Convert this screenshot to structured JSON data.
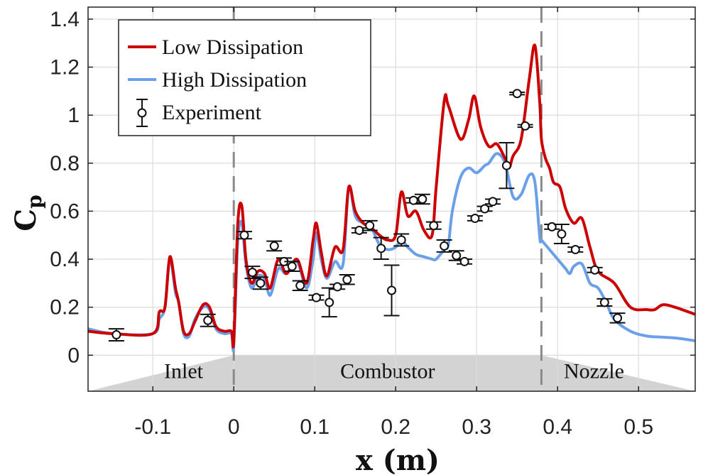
{
  "chart_data": {
    "type": "line",
    "xlabel": "x (m)",
    "ylabel": "C",
    "ylabel_sub": "p",
    "xlim": [
      -0.18,
      0.57
    ],
    "ylim": [
      -0.15,
      1.45
    ],
    "x_ticks": [
      -0.1,
      0,
      0.1,
      0.2,
      0.3,
      0.4,
      0.5
    ],
    "x_tick_labels": [
      "-0.1",
      "0",
      "0.1",
      "0.2",
      "0.3",
      "0.4",
      "0.5"
    ],
    "y_ticks": [
      0,
      0.2,
      0.4,
      0.6,
      0.8,
      1.0,
      1.2,
      1.4
    ],
    "y_tick_labels": [
      "0",
      "0.2",
      "0.4",
      "0.6",
      "0.8",
      "1",
      "1.2",
      "1.4"
    ],
    "grid": true,
    "legend_position": "top-left",
    "legend": [
      "Low Dissipation",
      "High Dissipation",
      "Experiment"
    ],
    "regions": [
      {
        "label": "Inlet",
        "x_start": -0.18,
        "x_end": 0.0
      },
      {
        "label": "Combustor",
        "x_start": 0.0,
        "x_end": 0.38
      },
      {
        "label": "Nozzle",
        "x_start": 0.38,
        "x_end": 0.57
      }
    ],
    "boundaries": [
      0.0,
      0.38
    ],
    "series": [
      {
        "name": "Low Dissipation",
        "color": "#cc0000",
        "points": [
          [
            -0.18,
            0.1
          ],
          [
            -0.15,
            0.09
          ],
          [
            -0.1,
            0.09
          ],
          [
            -0.092,
            0.18
          ],
          [
            -0.085,
            0.2
          ],
          [
            -0.079,
            0.41
          ],
          [
            -0.072,
            0.28
          ],
          [
            -0.068,
            0.22
          ],
          [
            -0.062,
            0.1
          ],
          [
            -0.055,
            0.09
          ],
          [
            -0.048,
            0.14
          ],
          [
            -0.038,
            0.21
          ],
          [
            -0.03,
            0.2
          ],
          [
            -0.022,
            0.12
          ],
          [
            -0.012,
            0.1
          ],
          [
            -0.003,
            0.1
          ],
          [
            0.0,
            0.06
          ],
          [
            0.005,
            0.55
          ],
          [
            0.01,
            0.62
          ],
          [
            0.015,
            0.4
          ],
          [
            0.022,
            0.3
          ],
          [
            0.03,
            0.35
          ],
          [
            0.038,
            0.34
          ],
          [
            0.045,
            0.28
          ],
          [
            0.055,
            0.4
          ],
          [
            0.065,
            0.34
          ],
          [
            0.078,
            0.4
          ],
          [
            0.09,
            0.3
          ],
          [
            0.098,
            0.48
          ],
          [
            0.102,
            0.55
          ],
          [
            0.108,
            0.43
          ],
          [
            0.115,
            0.33
          ],
          [
            0.125,
            0.45
          ],
          [
            0.135,
            0.44
          ],
          [
            0.142,
            0.7
          ],
          [
            0.15,
            0.6
          ],
          [
            0.16,
            0.55
          ],
          [
            0.17,
            0.53
          ],
          [
            0.18,
            0.5
          ],
          [
            0.19,
            0.48
          ],
          [
            0.2,
            0.5
          ],
          [
            0.207,
            0.68
          ],
          [
            0.215,
            0.58
          ],
          [
            0.225,
            0.6
          ],
          [
            0.235,
            0.52
          ],
          [
            0.245,
            0.5
          ],
          [
            0.25,
            0.7
          ],
          [
            0.26,
            1.06
          ],
          [
            0.265,
            1.04
          ],
          [
            0.28,
            0.9
          ],
          [
            0.29,
            0.98
          ],
          [
            0.297,
            1.08
          ],
          [
            0.305,
            0.95
          ],
          [
            0.315,
            0.87
          ],
          [
            0.325,
            0.88
          ],
          [
            0.335,
            0.82
          ],
          [
            0.34,
            0.78
          ],
          [
            0.345,
            0.83
          ],
          [
            0.355,
            0.9
          ],
          [
            0.365,
            1.15
          ],
          [
            0.372,
            1.29
          ],
          [
            0.378,
            1.05
          ],
          [
            0.38,
            0.9
          ],
          [
            0.385,
            0.82
          ],
          [
            0.39,
            0.78
          ],
          [
            0.395,
            0.72
          ],
          [
            0.403,
            0.7
          ],
          [
            0.41,
            0.61
          ],
          [
            0.42,
            0.55
          ],
          [
            0.43,
            0.57
          ],
          [
            0.44,
            0.45
          ],
          [
            0.45,
            0.35
          ],
          [
            0.47,
            0.3
          ],
          [
            0.49,
            0.2
          ],
          [
            0.51,
            0.19
          ],
          [
            0.52,
            0.19
          ],
          [
            0.53,
            0.21
          ],
          [
            0.545,
            0.2
          ],
          [
            0.57,
            0.17
          ]
        ]
      },
      {
        "name": "High Dissipation",
        "color": "#6aa0ea",
        "points": [
          [
            -0.18,
            0.11
          ],
          [
            -0.15,
            0.09
          ],
          [
            -0.1,
            0.09
          ],
          [
            -0.092,
            0.15
          ],
          [
            -0.085,
            0.2
          ],
          [
            -0.079,
            0.4
          ],
          [
            -0.072,
            0.26
          ],
          [
            -0.068,
            0.22
          ],
          [
            -0.062,
            0.09
          ],
          [
            -0.055,
            0.08
          ],
          [
            -0.048,
            0.15
          ],
          [
            -0.038,
            0.2
          ],
          [
            -0.03,
            0.19
          ],
          [
            -0.022,
            0.11
          ],
          [
            -0.012,
            0.09
          ],
          [
            -0.003,
            0.09
          ],
          [
            0.0,
            0.04
          ],
          [
            0.005,
            0.48
          ],
          [
            0.01,
            0.55
          ],
          [
            0.015,
            0.38
          ],
          [
            0.022,
            0.28
          ],
          [
            0.03,
            0.33
          ],
          [
            0.038,
            0.32
          ],
          [
            0.045,
            0.25
          ],
          [
            0.055,
            0.36
          ],
          [
            0.065,
            0.34
          ],
          [
            0.078,
            0.39
          ],
          [
            0.09,
            0.28
          ],
          [
            0.098,
            0.4
          ],
          [
            0.102,
            0.51
          ],
          [
            0.108,
            0.4
          ],
          [
            0.115,
            0.32
          ],
          [
            0.125,
            0.39
          ],
          [
            0.135,
            0.38
          ],
          [
            0.142,
            0.7
          ],
          [
            0.15,
            0.58
          ],
          [
            0.16,
            0.55
          ],
          [
            0.17,
            0.53
          ],
          [
            0.18,
            0.46
          ],
          [
            0.19,
            0.44
          ],
          [
            0.2,
            0.45
          ],
          [
            0.207,
            0.48
          ],
          [
            0.215,
            0.45
          ],
          [
            0.225,
            0.42
          ],
          [
            0.235,
            0.41
          ],
          [
            0.245,
            0.4
          ],
          [
            0.25,
            0.4
          ],
          [
            0.26,
            0.44
          ],
          [
            0.265,
            0.46
          ],
          [
            0.27,
            0.6
          ],
          [
            0.28,
            0.74
          ],
          [
            0.29,
            0.78
          ],
          [
            0.3,
            0.76
          ],
          [
            0.31,
            0.79
          ],
          [
            0.315,
            0.8
          ],
          [
            0.325,
            0.84
          ],
          [
            0.335,
            0.8
          ],
          [
            0.345,
            0.66
          ],
          [
            0.355,
            0.67
          ],
          [
            0.365,
            0.75
          ],
          [
            0.372,
            0.72
          ],
          [
            0.378,
            0.49
          ],
          [
            0.38,
            0.48
          ],
          [
            0.39,
            0.44
          ],
          [
            0.4,
            0.4
          ],
          [
            0.41,
            0.36
          ],
          [
            0.415,
            0.34
          ],
          [
            0.42,
            0.37
          ],
          [
            0.43,
            0.38
          ],
          [
            0.44,
            0.3
          ],
          [
            0.45,
            0.28
          ],
          [
            0.46,
            0.22
          ],
          [
            0.47,
            0.15
          ],
          [
            0.49,
            0.1
          ],
          [
            0.51,
            0.08
          ],
          [
            0.53,
            0.075
          ],
          [
            0.55,
            0.07
          ],
          [
            0.57,
            0.06
          ]
        ]
      }
    ],
    "experiment": {
      "name": "Experiment",
      "points": [
        {
          "x": -0.145,
          "y": 0.085,
          "err": 0.025
        },
        {
          "x": -0.032,
          "y": 0.145,
          "err": 0.025
        },
        {
          "x": 0.013,
          "y": 0.5,
          "err": 0.015
        },
        {
          "x": 0.023,
          "y": 0.345,
          "err": 0.025
        },
        {
          "x": 0.033,
          "y": 0.3,
          "err": 0.025
        },
        {
          "x": 0.05,
          "y": 0.455,
          "err": 0.02
        },
        {
          "x": 0.062,
          "y": 0.39,
          "err": 0.015
        },
        {
          "x": 0.072,
          "y": 0.37,
          "err": 0.02
        },
        {
          "x": 0.082,
          "y": 0.29,
          "err": 0.02
        },
        {
          "x": 0.102,
          "y": 0.24,
          "err": 0.01
        },
        {
          "x": 0.118,
          "y": 0.22,
          "err": 0.06
        },
        {
          "x": 0.128,
          "y": 0.285,
          "err": 0.01
        },
        {
          "x": 0.14,
          "y": 0.315,
          "err": 0.02
        },
        {
          "x": 0.155,
          "y": 0.52,
          "err": 0.01
        },
        {
          "x": 0.168,
          "y": 0.54,
          "err": 0.02
        },
        {
          "x": 0.182,
          "y": 0.445,
          "err": 0.045
        },
        {
          "x": 0.195,
          "y": 0.27,
          "err": 0.105
        },
        {
          "x": 0.207,
          "y": 0.48,
          "err": 0.025
        },
        {
          "x": 0.222,
          "y": 0.645,
          "err": 0.01
        },
        {
          "x": 0.233,
          "y": 0.65,
          "err": 0.02
        },
        {
          "x": 0.247,
          "y": 0.54,
          "err": 0.015
        },
        {
          "x": 0.26,
          "y": 0.455,
          "err": 0.025
        },
        {
          "x": 0.275,
          "y": 0.415,
          "err": 0.02
        },
        {
          "x": 0.285,
          "y": 0.39,
          "err": 0.01
        },
        {
          "x": 0.298,
          "y": 0.57,
          "err": 0.01
        },
        {
          "x": 0.31,
          "y": 0.61,
          "err": 0.01
        },
        {
          "x": 0.32,
          "y": 0.64,
          "err": 0.01
        },
        {
          "x": 0.337,
          "y": 0.79,
          "err": 0.095
        },
        {
          "x": 0.35,
          "y": 1.09,
          "err": 0.005
        },
        {
          "x": 0.36,
          "y": 0.955,
          "err": 0.005
        },
        {
          "x": 0.393,
          "y": 0.535,
          "err": 0.01
        },
        {
          "x": 0.405,
          "y": 0.505,
          "err": 0.04
        },
        {
          "x": 0.422,
          "y": 0.44,
          "err": 0.01
        },
        {
          "x": 0.446,
          "y": 0.355,
          "err": 0.01
        },
        {
          "x": 0.458,
          "y": 0.22,
          "err": 0.015
        },
        {
          "x": 0.474,
          "y": 0.155,
          "err": 0.02
        }
      ]
    }
  }
}
